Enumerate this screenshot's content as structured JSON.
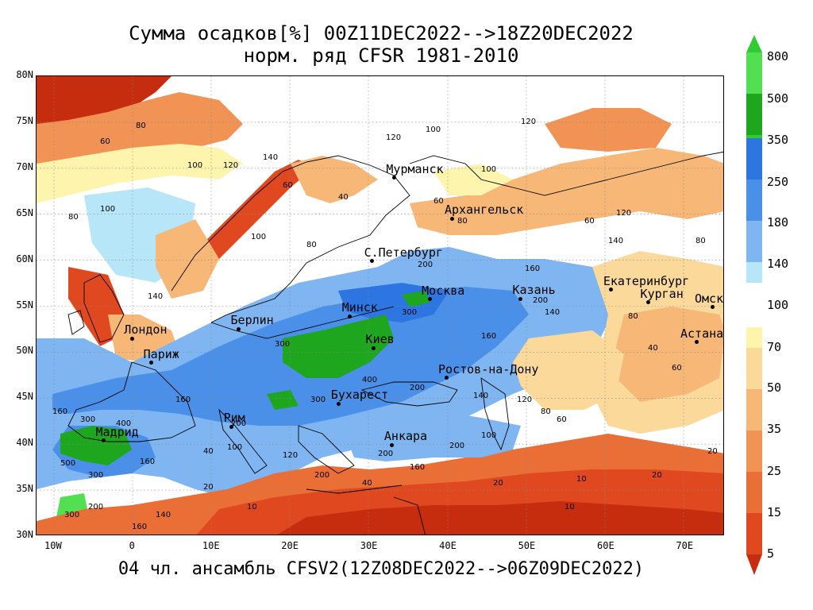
{
  "title": {
    "line1": "Сумма осадков[%] 00Z11DEC2022-->18Z20DEC2022",
    "line2": "норм. ряд CFSR 1981-2010"
  },
  "footer": "04 чл. ансамбль CFSV2(12Z08DEC2022-->06Z09DEC2022)",
  "lat_labels": [
    "80N",
    "75N",
    "70N",
    "65N",
    "60N",
    "55N",
    "50N",
    "45N",
    "40N",
    "35N",
    "30N"
  ],
  "lon_labels": [
    "10W",
    "0",
    "10E",
    "20E",
    "30E",
    "40E",
    "50E",
    "60E",
    "70E"
  ],
  "cities": [
    {
      "name": "Мурманск",
      "lon": 33.1,
      "lat": 68.97
    },
    {
      "name": "Архангельск",
      "lon": 40.5,
      "lat": 64.5
    },
    {
      "name": "С.Петербург",
      "lon": 30.3,
      "lat": 59.9
    },
    {
      "name": "Москва",
      "lon": 37.6,
      "lat": 55.75
    },
    {
      "name": "Казань",
      "lon": 49.1,
      "lat": 55.8
    },
    {
      "name": "Екатеринбург",
      "lon": 60.6,
      "lat": 56.8
    },
    {
      "name": "Курган",
      "lon": 65.3,
      "lat": 55.4
    },
    {
      "name": "Омск",
      "lon": 73.4,
      "lat": 54.9
    },
    {
      "name": "Астана",
      "lon": 71.4,
      "lat": 51.1
    },
    {
      "name": "Минск",
      "lon": 27.5,
      "lat": 53.9
    },
    {
      "name": "Берлин",
      "lon": 13.4,
      "lat": 52.5
    },
    {
      "name": "Лондон",
      "lon": -0.1,
      "lat": 51.5
    },
    {
      "name": "Париж",
      "lon": 2.35,
      "lat": 48.85
    },
    {
      "name": "Киев",
      "lon": 30.5,
      "lat": 50.45
    },
    {
      "name": "Ростов-на-Дону",
      "lon": 39.7,
      "lat": 47.2
    },
    {
      "name": "Бухарест",
      "lon": 26.1,
      "lat": 44.4
    },
    {
      "name": "Рим",
      "lon": 12.5,
      "lat": 41.9
    },
    {
      "name": "Мадрид",
      "lon": -3.7,
      "lat": 40.4
    },
    {
      "name": "Анкара",
      "lon": 32.85,
      "lat": 39.9
    }
  ],
  "colorbar": {
    "labels": [
      "800",
      "500",
      "350",
      "250",
      "180",
      "140",
      "100",
      "70",
      "50",
      "35",
      "25",
      "15",
      "5"
    ],
    "colors": {
      "gt800": "#2ecc2e",
      "500_800": "#52e052",
      "350_500": "#1ea61e",
      "250_350": "#2d75e0",
      "180_250": "#4a90e8",
      "140_180": "#7fb6f2",
      "100_140": "#b6e6f8",
      "neutral": "#ffffff",
      "70_100": "#fdf4ad",
      "50_70": "#fbd99a",
      "35_50": "#f6b777",
      "25_35": "#f19355",
      "15_25": "#ea6f37",
      "5_15": "#e0481f",
      "lt5": "#c62d0f"
    }
  },
  "contour_labels": [
    "10",
    "20",
    "40",
    "60",
    "80",
    "100",
    "120",
    "140",
    "160",
    "200",
    "300",
    "400",
    "500"
  ]
}
